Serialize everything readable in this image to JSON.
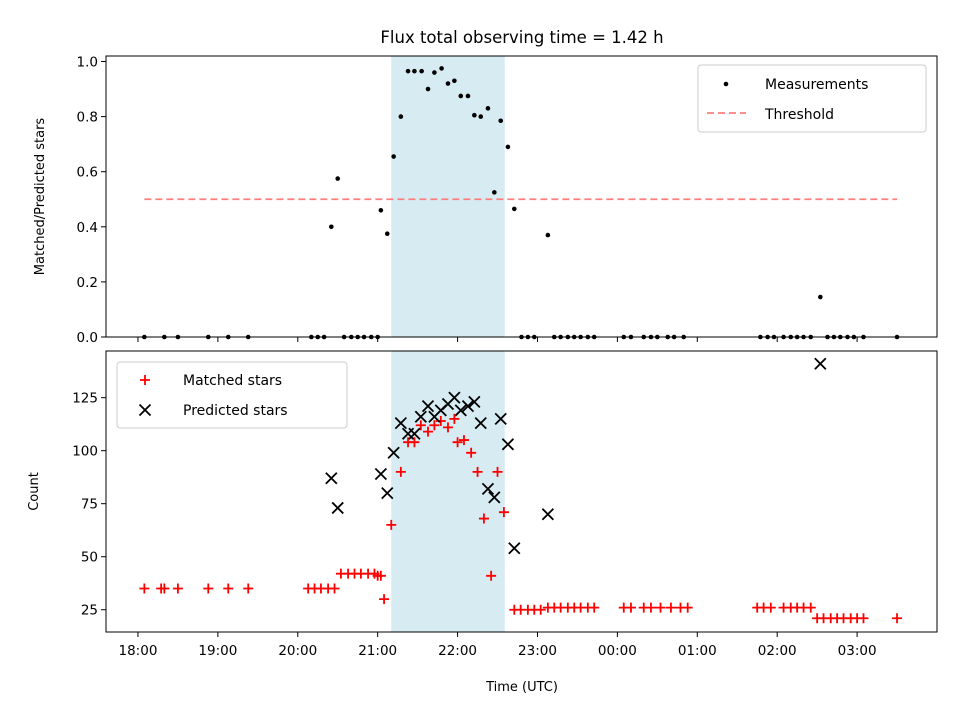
{
  "figure": {
    "title": "Flux total observing time = 1.42 h"
  },
  "colors": {
    "measurement": "#000000",
    "threshold": "#ff7f7f",
    "matched": "#ff0000",
    "predicted": "#000000",
    "span": "#add8e6"
  },
  "chart_data": [
    {
      "type": "scatter",
      "ylabel": "Matched/Predicted stars",
      "ylim": [
        0,
        1.02
      ],
      "xlim_hours": [
        17.6,
        28.0
      ],
      "yticks": [
        0.0,
        0.2,
        0.4,
        0.6,
        0.8,
        1.0
      ],
      "ytick_labels": [
        "0.0",
        "0.2",
        "0.4",
        "0.6",
        "0.8",
        "1.0"
      ],
      "legend_placement": "top-right",
      "threshold": {
        "name": "Threshold",
        "value": 0.5,
        "x_range_hours": [
          18.08,
          27.5
        ]
      },
      "span_hours": [
        21.17,
        22.59
      ],
      "series": [
        {
          "name": "Measurements",
          "points": [
            [
              18.08,
              0
            ],
            [
              18.33,
              0
            ],
            [
              18.5,
              0
            ],
            [
              18.88,
              0
            ],
            [
              19.13,
              0
            ],
            [
              19.38,
              0
            ],
            [
              20.17,
              0
            ],
            [
              20.25,
              0
            ],
            [
              20.33,
              0
            ],
            [
              20.42,
              0.4
            ],
            [
              20.5,
              0.575
            ],
            [
              20.58,
              0
            ],
            [
              20.67,
              0
            ],
            [
              20.75,
              0
            ],
            [
              20.83,
              0
            ],
            [
              20.92,
              0
            ],
            [
              21.0,
              0
            ],
            [
              21.04,
              0.46
            ],
            [
              21.12,
              0.375
            ],
            [
              21.2,
              0.655
            ],
            [
              21.29,
              0.8
            ],
            [
              21.38,
              0.965
            ],
            [
              21.46,
              0.965
            ],
            [
              21.55,
              0.965
            ],
            [
              21.63,
              0.9
            ],
            [
              21.71,
              0.96
            ],
            [
              21.8,
              0.975
            ],
            [
              21.88,
              0.92
            ],
            [
              21.96,
              0.93
            ],
            [
              22.04,
              0.875
            ],
            [
              22.13,
              0.875
            ],
            [
              22.21,
              0.805
            ],
            [
              22.29,
              0.8
            ],
            [
              22.38,
              0.83
            ],
            [
              22.46,
              0.525
            ],
            [
              22.54,
              0.785
            ],
            [
              22.63,
              0.69
            ],
            [
              22.71,
              0.465
            ],
            [
              22.8,
              0
            ],
            [
              22.88,
              0
            ],
            [
              22.96,
              0
            ],
            [
              23.13,
              0.37
            ],
            [
              23.21,
              0
            ],
            [
              23.29,
              0
            ],
            [
              23.38,
              0
            ],
            [
              23.46,
              0
            ],
            [
              23.54,
              0
            ],
            [
              23.63,
              0
            ],
            [
              23.71,
              0
            ],
            [
              24.08,
              0
            ],
            [
              24.17,
              0
            ],
            [
              24.33,
              0
            ],
            [
              24.42,
              0
            ],
            [
              24.5,
              0
            ],
            [
              24.63,
              0
            ],
            [
              24.71,
              0
            ],
            [
              24.83,
              0
            ],
            [
              25.79,
              0
            ],
            [
              25.88,
              0
            ],
            [
              25.96,
              0
            ],
            [
              26.08,
              0
            ],
            [
              26.17,
              0
            ],
            [
              26.25,
              0
            ],
            [
              26.33,
              0
            ],
            [
              26.42,
              0
            ],
            [
              26.54,
              0.145
            ],
            [
              26.63,
              0
            ],
            [
              26.71,
              0
            ],
            [
              26.79,
              0
            ],
            [
              26.88,
              0
            ],
            [
              26.96,
              0
            ],
            [
              27.08,
              0
            ],
            [
              27.5,
              0
            ]
          ]
        }
      ]
    },
    {
      "type": "scatter",
      "ylabel": "Count",
      "xlabel": "Time (UTC)",
      "ylim": [
        14.5,
        147
      ],
      "xlim_hours": [
        17.6,
        28.0
      ],
      "yticks": [
        25,
        50,
        75,
        100,
        125
      ],
      "ytick_labels": [
        "25",
        "50",
        "75",
        "100",
        "125"
      ],
      "xticks_hours": [
        18,
        19,
        20,
        21,
        22,
        23,
        24,
        25,
        26,
        27
      ],
      "xtick_labels": [
        "18:00",
        "19:00",
        "20:00",
        "21:00",
        "22:00",
        "23:00",
        "00:00",
        "01:00",
        "02:00",
        "03:00"
      ],
      "legend_placement": "top-left",
      "span_hours": [
        21.17,
        22.59
      ],
      "series": [
        {
          "name": "Matched stars",
          "points": [
            [
              18.08,
              35
            ],
            [
              18.29,
              35
            ],
            [
              18.33,
              35
            ],
            [
              18.5,
              35
            ],
            [
              18.88,
              35
            ],
            [
              19.13,
              35
            ],
            [
              19.38,
              35
            ],
            [
              20.13,
              35
            ],
            [
              20.21,
              35
            ],
            [
              20.29,
              35
            ],
            [
              20.38,
              35
            ],
            [
              20.46,
              35
            ],
            [
              20.54,
              42
            ],
            [
              20.63,
              42
            ],
            [
              20.71,
              42
            ],
            [
              20.79,
              42
            ],
            [
              20.88,
              42
            ],
            [
              20.96,
              42
            ],
            [
              21.0,
              41
            ],
            [
              21.04,
              41
            ],
            [
              21.08,
              30
            ],
            [
              21.17,
              65
            ],
            [
              21.29,
              90
            ],
            [
              21.38,
              104
            ],
            [
              21.46,
              104
            ],
            [
              21.54,
              112
            ],
            [
              21.63,
              109
            ],
            [
              21.71,
              112
            ],
            [
              21.79,
              114
            ],
            [
              21.88,
              111
            ],
            [
              21.96,
              115
            ],
            [
              22.0,
              104
            ],
            [
              22.08,
              105
            ],
            [
              22.17,
              99
            ],
            [
              22.25,
              90
            ],
            [
              22.33,
              68
            ],
            [
              22.42,
              41
            ],
            [
              22.5,
              90
            ],
            [
              22.58,
              71
            ],
            [
              22.71,
              25
            ],
            [
              22.79,
              25
            ],
            [
              22.88,
              25
            ],
            [
              22.96,
              25
            ],
            [
              23.04,
              25
            ],
            [
              23.13,
              26
            ],
            [
              23.21,
              26
            ],
            [
              23.29,
              26
            ],
            [
              23.38,
              26
            ],
            [
              23.46,
              26
            ],
            [
              23.54,
              26
            ],
            [
              23.63,
              26
            ],
            [
              23.71,
              26
            ],
            [
              24.08,
              26
            ],
            [
              24.17,
              26
            ],
            [
              24.33,
              26
            ],
            [
              24.42,
              26
            ],
            [
              24.54,
              26
            ],
            [
              24.67,
              26
            ],
            [
              24.79,
              26
            ],
            [
              24.88,
              26
            ],
            [
              25.75,
              26
            ],
            [
              25.83,
              26
            ],
            [
              25.92,
              26
            ],
            [
              26.08,
              26
            ],
            [
              26.17,
              26
            ],
            [
              26.25,
              26
            ],
            [
              26.33,
              26
            ],
            [
              26.42,
              26
            ],
            [
              26.5,
              21
            ],
            [
              26.58,
              21
            ],
            [
              26.67,
              21
            ],
            [
              26.75,
              21
            ],
            [
              26.83,
              21
            ],
            [
              26.92,
              21
            ],
            [
              27.0,
              21
            ],
            [
              27.08,
              21
            ],
            [
              27.5,
              21
            ]
          ]
        },
        {
          "name": "Predicted stars",
          "points": [
            [
              20.42,
              87
            ],
            [
              20.5,
              73
            ],
            [
              21.04,
              89
            ],
            [
              21.12,
              80
            ],
            [
              21.2,
              99
            ],
            [
              21.29,
              113
            ],
            [
              21.38,
              108
            ],
            [
              21.46,
              108
            ],
            [
              21.54,
              116
            ],
            [
              21.63,
              121
            ],
            [
              21.71,
              116
            ],
            [
              21.79,
              119
            ],
            [
              21.88,
              122
            ],
            [
              21.96,
              125
            ],
            [
              22.04,
              119
            ],
            [
              22.13,
              121
            ],
            [
              22.21,
              123
            ],
            [
              22.29,
              113
            ],
            [
              22.38,
              82
            ],
            [
              22.46,
              78
            ],
            [
              22.54,
              115
            ],
            [
              22.63,
              103
            ],
            [
              22.71,
              54
            ],
            [
              23.13,
              70
            ],
            [
              26.54,
              141
            ]
          ]
        }
      ]
    }
  ]
}
